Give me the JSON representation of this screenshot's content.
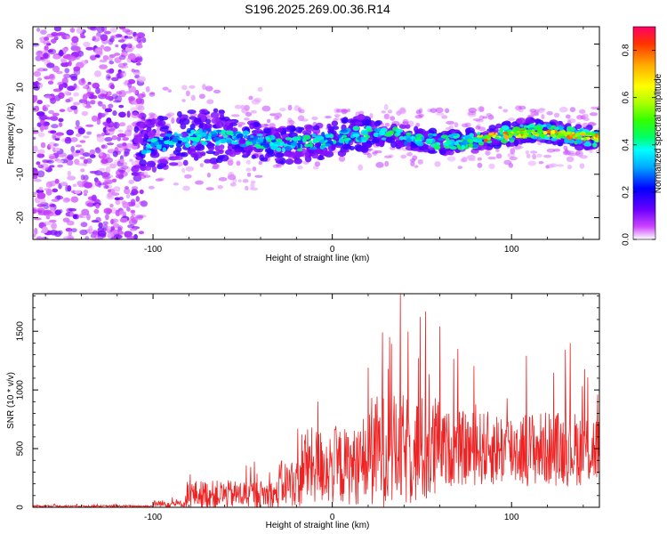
{
  "figure_title": "S196.2025.269.00.36.R14",
  "chart_data": [
    {
      "type": "heatmap",
      "title": "S196.2025.269.00.36.R14",
      "xlabel": "Height of straight line (km)",
      "ylabel": "Frequency (Hz)",
      "xlim": [
        -167,
        149
      ],
      "ylim": [
        -25,
        24
      ],
      "xticks": [
        -100,
        0,
        100
      ],
      "yticks": [
        -20,
        -10,
        0,
        10,
        20
      ],
      "colorbar": {
        "label": "Normalized spectral amplitude",
        "range": [
          0,
          0.9
        ],
        "ticks": [
          "0.0",
          "0.2",
          "0.4",
          "0.6",
          "0.8"
        ],
        "colors": [
          "#ffffff",
          "#cc44ff",
          "#6a00ff",
          "#0000ff",
          "#00aaff",
          "#00ffff",
          "#00ff66",
          "#33ff00",
          "#aaff00",
          "#ffff00",
          "#ffaa00",
          "#ff3300",
          "#ff0066"
        ]
      },
      "ridge": {
        "description": "signal ridge near 0 Hz",
        "x_start": -110,
        "x_end": 149,
        "center_hz_start": -2.5,
        "center_hz_end": -1.0,
        "peak_amplitude": 0.9
      },
      "noise_region_x": [
        -167,
        -105
      ]
    },
    {
      "type": "line",
      "xlabel": "Height of straight line (km)",
      "ylabel": "SNR (10 * v/v)",
      "xlim": [
        -167,
        149
      ],
      "ylim": [
        0,
        1820
      ],
      "xticks": [
        -100,
        0,
        100
      ],
      "yticks": [
        0,
        500,
        1000,
        1500
      ],
      "series": [
        {
          "name": "SNR",
          "color": "#ee2222",
          "segments": [
            {
              "x": [
                -167,
                -100
              ],
              "baseline": 10,
              "noise": 8
            },
            {
              "x": [
                -100,
                -82
              ],
              "baseline": 30,
              "noise": 30
            },
            {
              "x": [
                -82,
                -30
              ],
              "baseline": 110,
              "noise": 120
            },
            {
              "x": [
                -30,
                -17
              ],
              "baseline": 200,
              "noise": 200
            },
            {
              "x": [
                -17,
                20
              ],
              "baseline": 350,
              "noise": 330
            },
            {
              "x": [
                20,
                60
              ],
              "baseline": 480,
              "noise": 480
            },
            {
              "x": [
                60,
                149
              ],
              "baseline": 500,
              "noise": 320
            }
          ],
          "peaks": [
            {
              "x": 38,
              "y": 1820
            },
            {
              "x": 28,
              "y": 1490
            },
            {
              "x": 32,
              "y": 1450
            },
            {
              "x": 60,
              "y": 1540
            },
            {
              "x": 48,
              "y": 1270
            },
            {
              "x": 70,
              "y": 1350
            },
            {
              "x": -8,
              "y": 900
            },
            {
              "x": 20,
              "y": 1190
            },
            {
              "x": 148,
              "y": 960
            },
            {
              "x": -17,
              "y": 620
            }
          ]
        }
      ]
    }
  ]
}
